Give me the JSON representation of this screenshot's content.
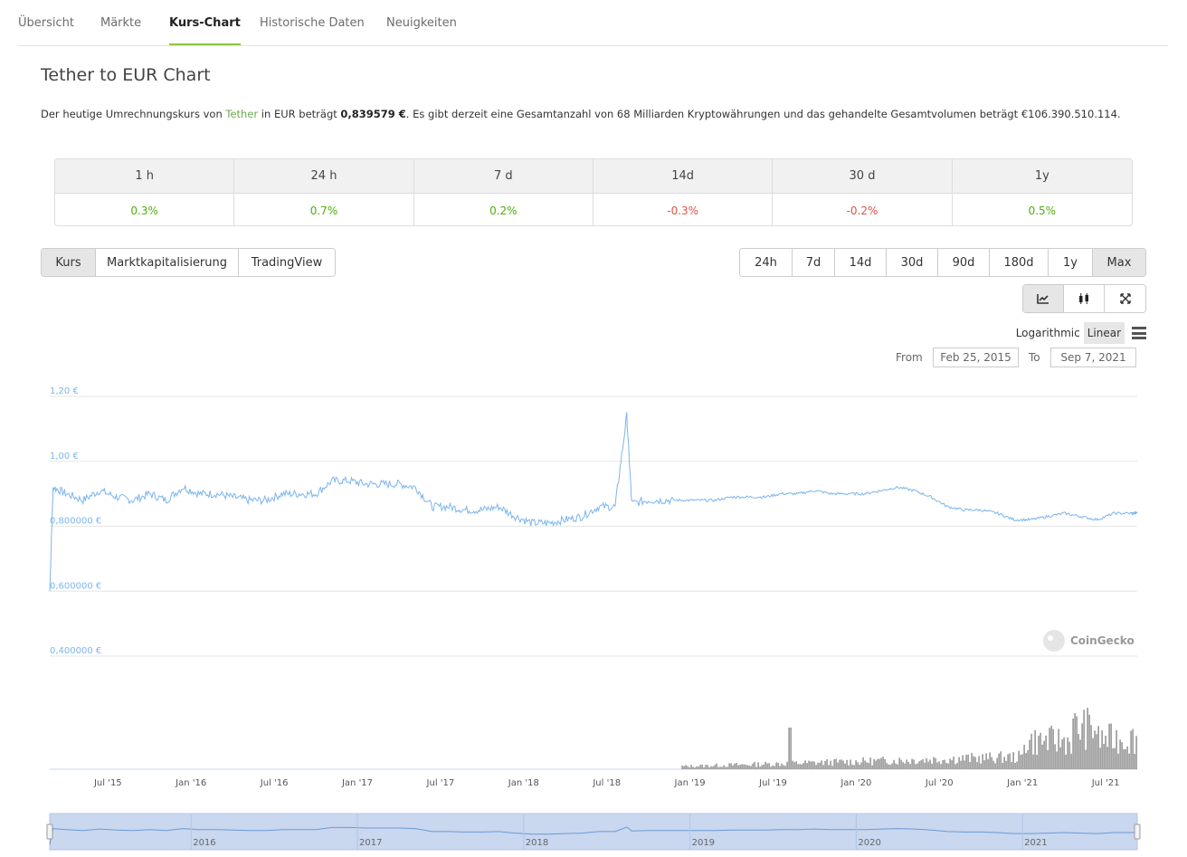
{
  "tabs": [
    {
      "label": "Übersicht",
      "active": false
    },
    {
      "label": "Märkte",
      "active": false
    },
    {
      "label": "Kurs-Chart",
      "active": true
    },
    {
      "label": "Historische Daten",
      "active": false
    },
    {
      "label": "Neuigkeiten",
      "active": false
    }
  ],
  "page_title": "Tether to EUR Chart",
  "description": {
    "part1": "Der heutige Umrechnungskurs von ",
    "coin_link": "Tether",
    "part2": " in EUR beträgt ",
    "price": "0,839579 €",
    "part3": ". Es gibt derzeit eine Gesamtanzahl von 68 Milliarden Kryptowährungen und das gehandelte Gesamtvolumen beträgt €106.390.510.114."
  },
  "changes": {
    "headers": [
      "1 h",
      "24 h",
      "7 d",
      "14d",
      "30 d",
      "1y"
    ],
    "values": [
      "0.3%",
      "0.7%",
      "0.2%",
      "-0.3%",
      "-0.2%",
      "0.5%"
    ],
    "colors": {
      "positive": "#4eaf0a",
      "negative": "#e15241"
    }
  },
  "chart_types": [
    {
      "label": "Kurs",
      "active": true
    },
    {
      "label": "Marktkapitalisierung",
      "active": false
    },
    {
      "label": "TradingView",
      "active": false
    }
  ],
  "periods": [
    {
      "label": "24h",
      "active": false
    },
    {
      "label": "7d",
      "active": false
    },
    {
      "label": "14d",
      "active": false
    },
    {
      "label": "30d",
      "active": false
    },
    {
      "label": "90d",
      "active": false
    },
    {
      "label": "180d",
      "active": false
    },
    {
      "label": "1y",
      "active": false
    },
    {
      "label": "Max",
      "active": true
    }
  ],
  "view_icons": [
    "line-chart-icon",
    "candlestick-icon",
    "fullscreen-icon"
  ],
  "scale": {
    "logarithmic": "Logarithmic",
    "linear": "Linear",
    "active": "Linear"
  },
  "range": {
    "from_label": "From",
    "from": "Feb 25, 2015",
    "to_label": "To",
    "to": "Sep 7, 2021"
  },
  "watermark": "CoinGecko",
  "chart_data": {
    "type": "line",
    "series": [
      {
        "values": [
          [
            2015.15,
            0.6
          ],
          [
            2015.17,
            0.92
          ],
          [
            2015.25,
            0.9
          ],
          [
            2015.35,
            0.88
          ],
          [
            2015.45,
            0.91
          ],
          [
            2015.55,
            0.89
          ],
          [
            2015.65,
            0.88
          ],
          [
            2015.75,
            0.9
          ],
          [
            2015.85,
            0.88
          ],
          [
            2015.95,
            0.92
          ],
          [
            2016.05,
            0.9
          ],
          [
            2016.15,
            0.9
          ],
          [
            2016.25,
            0.89
          ],
          [
            2016.35,
            0.88
          ],
          [
            2016.45,
            0.88
          ],
          [
            2016.55,
            0.9
          ],
          [
            2016.65,
            0.9
          ],
          [
            2016.75,
            0.9
          ],
          [
            2016.85,
            0.94
          ],
          [
            2016.95,
            0.94
          ],
          [
            2017.05,
            0.93
          ],
          [
            2017.15,
            0.93
          ],
          [
            2017.25,
            0.93
          ],
          [
            2017.35,
            0.92
          ],
          [
            2017.45,
            0.86
          ],
          [
            2017.55,
            0.86
          ],
          [
            2017.65,
            0.85
          ],
          [
            2017.75,
            0.85
          ],
          [
            2017.85,
            0.86
          ],
          [
            2017.95,
            0.83
          ],
          [
            2018.05,
            0.81
          ],
          [
            2018.15,
            0.81
          ],
          [
            2018.25,
            0.82
          ],
          [
            2018.35,
            0.83
          ],
          [
            2018.45,
            0.86
          ],
          [
            2018.55,
            0.86
          ],
          [
            2018.62,
            1.14
          ],
          [
            2018.65,
            0.87
          ],
          [
            2018.75,
            0.88
          ],
          [
            2018.85,
            0.88
          ],
          [
            2018.95,
            0.88
          ],
          [
            2019.05,
            0.88
          ],
          [
            2019.15,
            0.88
          ],
          [
            2019.25,
            0.89
          ],
          [
            2019.35,
            0.89
          ],
          [
            2019.45,
            0.89
          ],
          [
            2019.55,
            0.9
          ],
          [
            2019.65,
            0.9
          ],
          [
            2019.75,
            0.91
          ],
          [
            2019.85,
            0.9
          ],
          [
            2019.95,
            0.9
          ],
          [
            2020.05,
            0.9
          ],
          [
            2020.15,
            0.91
          ],
          [
            2020.25,
            0.92
          ],
          [
            2020.35,
            0.91
          ],
          [
            2020.45,
            0.89
          ],
          [
            2020.55,
            0.86
          ],
          [
            2020.65,
            0.85
          ],
          [
            2020.75,
            0.85
          ],
          [
            2020.85,
            0.84
          ],
          [
            2020.95,
            0.82
          ],
          [
            2021.05,
            0.82
          ],
          [
            2021.15,
            0.83
          ],
          [
            2021.25,
            0.84
          ],
          [
            2021.35,
            0.83
          ],
          [
            2021.45,
            0.82
          ],
          [
            2021.55,
            0.84
          ],
          [
            2021.65,
            0.84
          ],
          [
            2021.69,
            0.84
          ]
        ]
      }
    ],
    "ylim": [
      0.4,
      1.2
    ],
    "yticks": [
      "1,20 €",
      "1,00 €",
      "0,800000 €",
      "0,600000 €",
      "0,400000 €"
    ],
    "xticks": [
      "Jul '15",
      "Jan '16",
      "Jul '16",
      "Jan '17",
      "Jul '17",
      "Jan '18",
      "Jul '18",
      "Jan '19",
      "Jul '19",
      "Jan '20",
      "Jul '20",
      "Jan '21",
      "Jul '21"
    ],
    "navigator_years": [
      "2016",
      "2017",
      "2018",
      "2019",
      "2020",
      "2021"
    ],
    "volume_series": {
      "shown": true,
      "color": "#888888"
    },
    "line_color": "#7cb5ec",
    "grid": true
  }
}
